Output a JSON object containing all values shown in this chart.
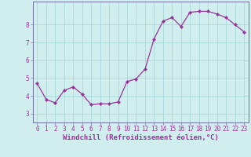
{
  "x": [
    0,
    1,
    2,
    3,
    4,
    5,
    6,
    7,
    8,
    9,
    10,
    11,
    12,
    13,
    14,
    15,
    16,
    17,
    18,
    19,
    20,
    21,
    22,
    23
  ],
  "y": [
    4.7,
    3.8,
    3.6,
    4.3,
    4.5,
    4.1,
    3.5,
    3.55,
    3.55,
    3.65,
    4.8,
    4.95,
    5.5,
    7.2,
    8.2,
    8.4,
    7.9,
    8.7,
    8.75,
    8.75,
    8.6,
    8.4,
    8.0,
    7.6
  ],
  "line_color": "#993399",
  "marker": "D",
  "marker_size": 2,
  "bg_color": "#d0eeee",
  "grid_color": "#a8d8d8",
  "xlabel": "Windchill (Refroidissement éolien,°C)",
  "xlabel_fontsize": 6.5,
  "ytick_labels": [
    "3",
    "4",
    "5",
    "6",
    "7",
    "8"
  ],
  "ytick_values": [
    3,
    4,
    5,
    6,
    7,
    8
  ],
  "ylim": [
    2.5,
    9.3
  ],
  "xlim": [
    -0.5,
    23.5
  ],
  "xticks": [
    0,
    1,
    2,
    3,
    4,
    5,
    6,
    7,
    8,
    9,
    10,
    11,
    12,
    13,
    14,
    15,
    16,
    17,
    18,
    19,
    20,
    21,
    22,
    23
  ],
  "tick_fontsize": 5.5,
  "spine_color": "#7070a0",
  "label_color": "#993399"
}
